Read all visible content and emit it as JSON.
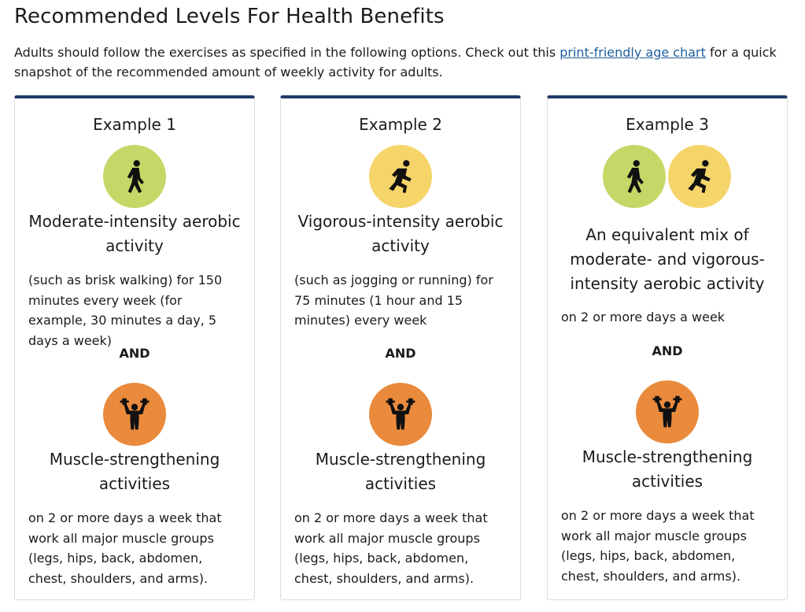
{
  "header": {
    "title": "Recommended Levels For Health Benefits",
    "intro_before": "Adults should follow the exercises as specified in the following options. Check out this ",
    "intro_link": "print-friendly age chart",
    "intro_after": " for a quick snapshot of the recommended amount of weekly activity for adults."
  },
  "colors": {
    "card_top_border": "#1f3a68",
    "walking_circle": "#c5d766",
    "running_circle": "#f5d46a",
    "strength_circle": "#e98a3c",
    "link": "#1d5e9c"
  },
  "cards": [
    {
      "title": "Example 1",
      "icons": [
        "walking-person-icon"
      ],
      "aerobic_title": "Moderate-intensity aerobic activity",
      "aerobic_desc": "(such as brisk walking) for 150 minutes every week (for example, 30 minutes a day, 5 days a week)",
      "and_label": "AND",
      "strength_icon": "weightlifter-icon",
      "strength_title": "Muscle-strengthening activities",
      "strength_desc": "on 2 or more days a week that work all major muscle groups (legs, hips, back, abdomen, chest, shoulders, and arms)."
    },
    {
      "title": "Example 2",
      "icons": [
        "running-person-icon"
      ],
      "aerobic_title": "Vigorous-intensity aerobic activity",
      "aerobic_desc": "(such as jogging or running) for 75 minutes (1 hour and 15 minutes) every week",
      "and_label": "AND",
      "strength_icon": "weightlifter-icon",
      "strength_title": "Muscle-strengthening activities",
      "strength_desc": "on 2 or more days a week that work all major muscle groups (legs, hips, back, abdomen, chest, shoulders, and arms)."
    },
    {
      "title": "Example 3",
      "icons": [
        "walking-person-icon",
        "running-person-icon"
      ],
      "aerobic_title": "An equivalent mix of moderate- and vigorous-intensity aerobic activity",
      "aerobic_desc": "on 2 or more days a week",
      "and_label": "AND",
      "strength_icon": "weightlifter-icon",
      "strength_title": "Muscle-strengthening activities",
      "strength_desc": "on 2 or more days a week that work all major muscle groups (legs, hips, back, abdomen, chest, shoulders, and arms)."
    }
  ]
}
